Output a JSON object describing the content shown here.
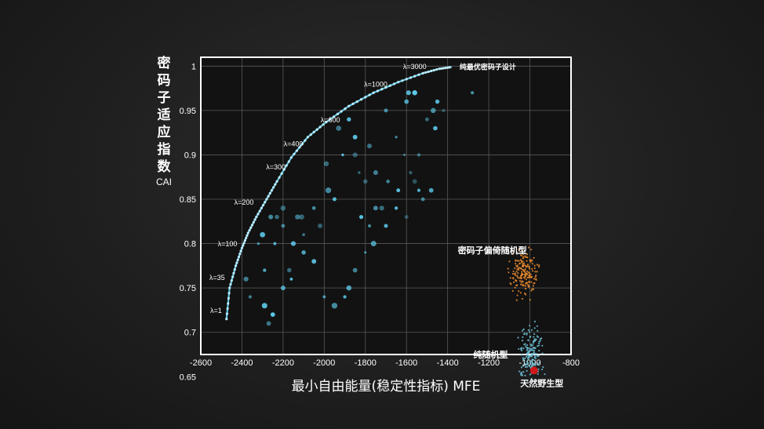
{
  "chart_data": {
    "type": "scatter",
    "title": "",
    "ylabel": "密码子适应指数",
    "ylabel_sub": "CAI",
    "xlabel": "最小自由能量(稳定性指标) MFE",
    "xlim": [
      -2600,
      -800
    ],
    "ylim": [
      0.675,
      1.01
    ],
    "xticks": [
      -2600,
      -2400,
      -2200,
      -2000,
      -1800,
      -1600,
      -1400,
      -1200,
      -1000,
      -800
    ],
    "yticks": [
      0.65,
      0.7,
      0.75,
      0.8,
      0.85,
      0.9,
      0.95,
      1
    ],
    "grid": true,
    "colors": {
      "optimal": "#5cc6e6",
      "scatter": "#5cc6e6",
      "codon_bias": "#e8892e",
      "random": "#6fc3d8",
      "natural": "#d01818",
      "frame": "#ffffff",
      "grid": "#5a5a5a"
    },
    "frontier": {
      "name": "纯最优密码子设计",
      "points": [
        [
          -2475,
          0.715
        ],
        [
          -2460,
          0.75
        ],
        [
          -2430,
          0.775
        ],
        [
          -2400,
          0.795
        ],
        [
          -2370,
          0.812
        ],
        [
          -2330,
          0.83
        ],
        [
          -2280,
          0.85
        ],
        [
          -2230,
          0.87
        ],
        [
          -2160,
          0.897
        ],
        [
          -2080,
          0.92
        ],
        [
          -1990,
          0.937
        ],
        [
          -1880,
          0.955
        ],
        [
          -1760,
          0.97
        ],
        [
          -1640,
          0.982
        ],
        [
          -1520,
          0.992
        ],
        [
          -1440,
          0.997
        ],
        [
          -1380,
          0.999
        ]
      ],
      "lambda_labels": [
        {
          "text": "λ=1",
          "x": -2475,
          "y": 0.72
        },
        {
          "text": "λ=35",
          "x": -2460,
          "y": 0.757
        },
        {
          "text": "λ=100",
          "x": -2400,
          "y": 0.795
        },
        {
          "text": "λ=200",
          "x": -2320,
          "y": 0.842
        },
        {
          "text": "λ=300",
          "x": -2165,
          "y": 0.882
        },
        {
          "text": "λ=400",
          "x": -2080,
          "y": 0.908
        },
        {
          "text": "λ=600",
          "x": -1900,
          "y": 0.935
        },
        {
          "text": "λ=1000",
          "x": -1670,
          "y": 0.975
        },
        {
          "text": "λ=3000",
          "x": -1480,
          "y": 0.995
        }
      ]
    },
    "scatter_points": [
      [
        -2270,
        0.71
      ],
      [
        -2250,
        0.72
      ],
      [
        -2200,
        0.75
      ],
      [
        -2160,
        0.76
      ],
      [
        -2150,
        0.8
      ],
      [
        -2130,
        0.83
      ],
      [
        -2200,
        0.84
      ],
      [
        -2230,
        0.83
      ],
      [
        -2240,
        0.8
      ],
      [
        -2300,
        0.81
      ],
      [
        -2320,
        0.8
      ],
      [
        -2380,
        0.76
      ],
      [
        -2360,
        0.74
      ],
      [
        -2290,
        0.73
      ],
      [
        -2200,
        0.82
      ],
      [
        -2110,
        0.83
      ],
      [
        -2100,
        0.81
      ],
      [
        -2050,
        0.84
      ],
      [
        -1980,
        0.86
      ],
      [
        -1990,
        0.89
      ],
      [
        -1950,
        0.85
      ],
      [
        -1930,
        0.93
      ],
      [
        -1880,
        0.94
      ],
      [
        -1850,
        0.9
      ],
      [
        -1800,
        0.87
      ],
      [
        -1750,
        0.88
      ],
      [
        -1720,
        0.84
      ],
      [
        -1690,
        0.87
      ],
      [
        -1640,
        0.86
      ],
      [
        -1600,
        0.83
      ],
      [
        -1580,
        0.88
      ],
      [
        -1560,
        0.87
      ],
      [
        -1540,
        0.9
      ],
      [
        -1500,
        0.94
      ],
      [
        -1470,
        0.95
      ],
      [
        -1450,
        0.96
      ],
      [
        -1600,
        0.96
      ],
      [
        -1650,
        0.92
      ],
      [
        -1700,
        0.95
      ],
      [
        -1780,
        0.91
      ],
      [
        -1820,
        0.83
      ],
      [
        -1780,
        0.82
      ],
      [
        -1760,
        0.8
      ],
      [
        -1800,
        0.79
      ],
      [
        -1850,
        0.77
      ],
      [
        -1880,
        0.75
      ],
      [
        -1900,
        0.74
      ],
      [
        -1950,
        0.73
      ],
      [
        -2000,
        0.74
      ],
      [
        -2050,
        0.78
      ],
      [
        -2100,
        0.79
      ],
      [
        -1910,
        0.9
      ],
      [
        -1830,
        0.88
      ],
      [
        -1700,
        0.82
      ],
      [
        -1650,
        0.84
      ],
      [
        -1540,
        0.86
      ],
      [
        -1520,
        0.85
      ],
      [
        -1610,
        0.9
      ],
      [
        -1590,
        0.97
      ],
      [
        -1560,
        0.97
      ],
      [
        -1460,
        0.93
      ],
      [
        -1420,
        0.95
      ],
      [
        -1280,
        0.97
      ],
      [
        -1480,
        0.86
      ],
      [
        -1750,
        0.84
      ],
      [
        -1850,
        0.92
      ],
      [
        -2020,
        0.82
      ],
      [
        -2170,
        0.77
      ],
      [
        -2260,
        0.83
      ],
      [
        -2290,
        0.77
      ]
    ],
    "clusters": [
      {
        "name": "密码子偏倚随机型",
        "center": [
          -1030,
          0.768
        ],
        "spread": [
          30,
          0.012
        ],
        "count": 180
      },
      {
        "name": "纯随机型",
        "center": [
          -1000,
          0.675
        ],
        "spread": [
          28,
          0.015
        ],
        "count": 160
      },
      {
        "name": "天然野生型",
        "center": [
          -980,
          0.657
        ],
        "single": true
      }
    ]
  }
}
